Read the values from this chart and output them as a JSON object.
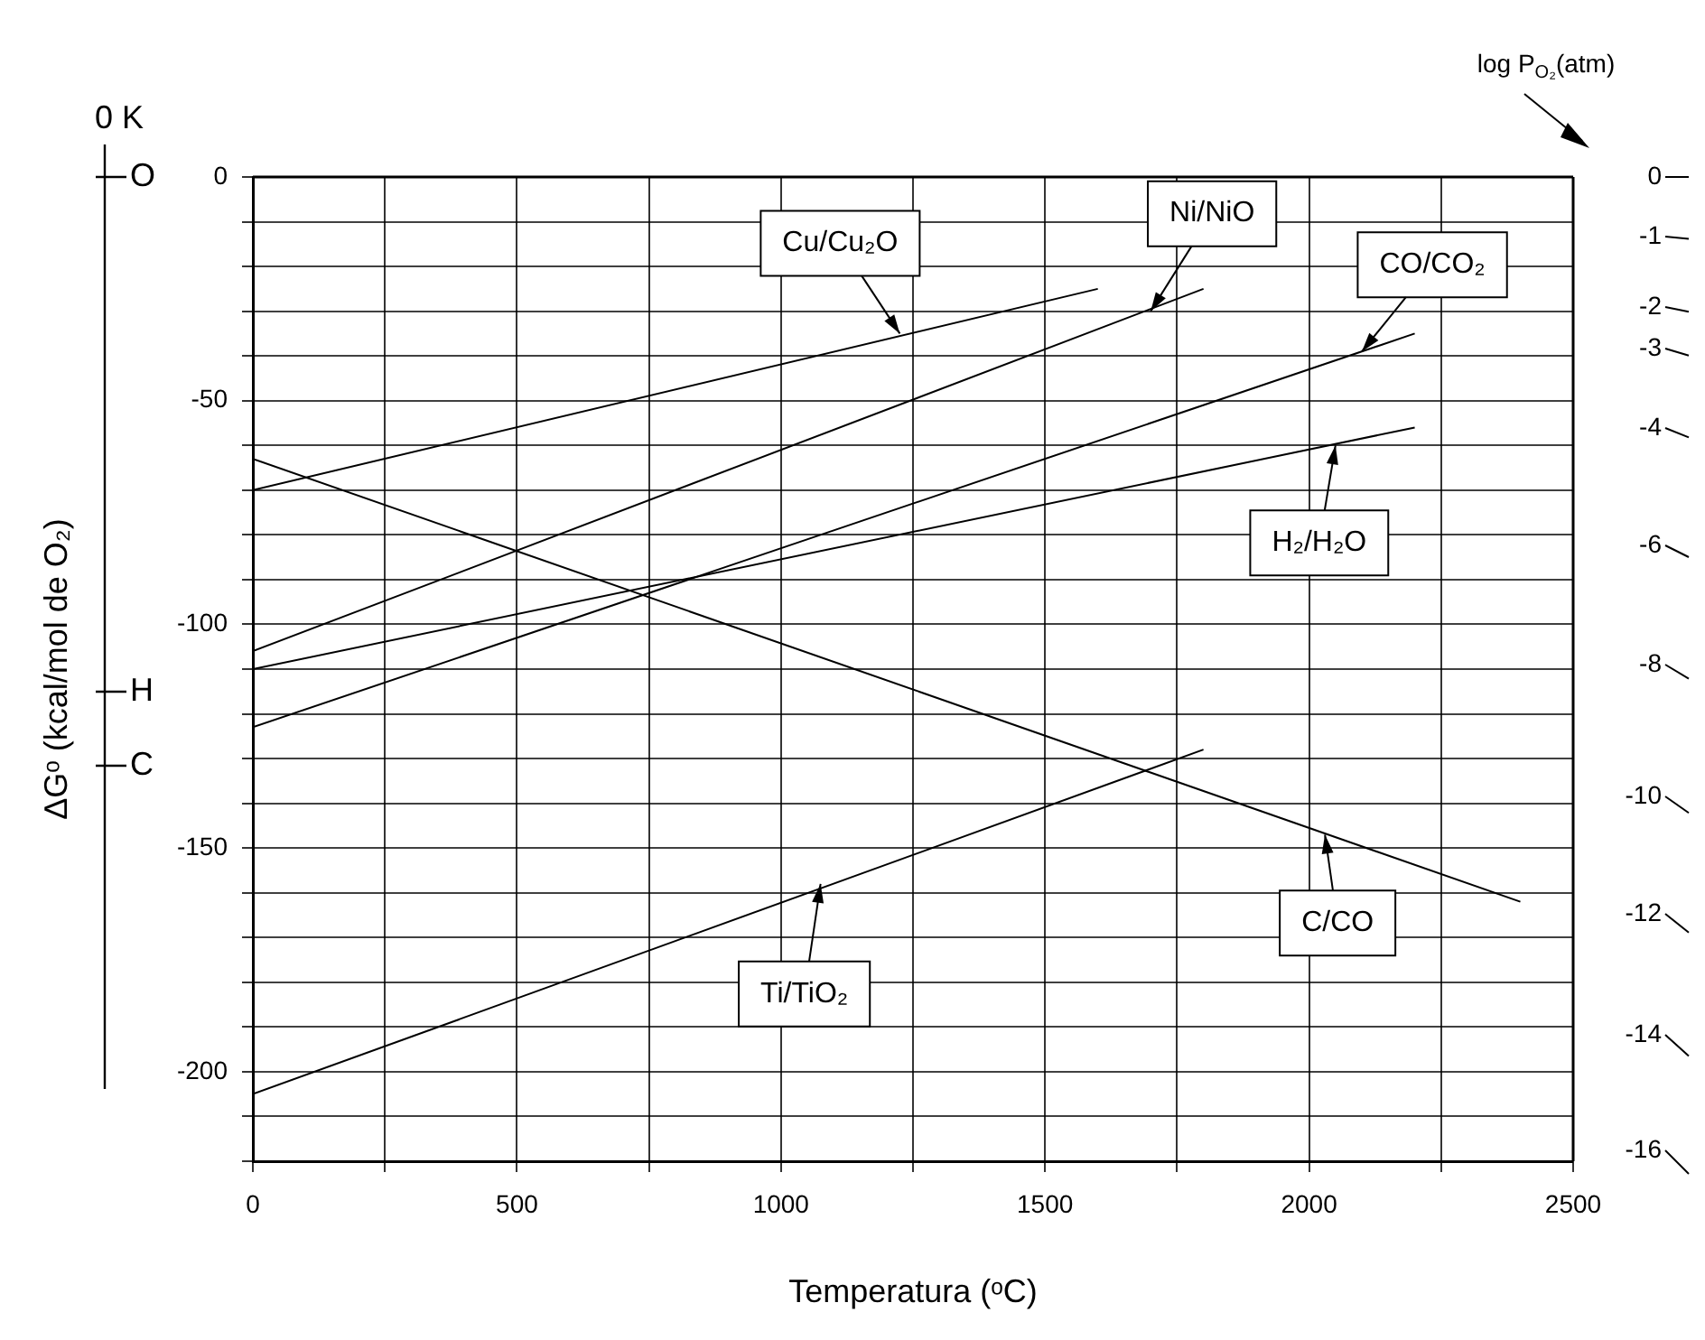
{
  "chart_data": {
    "type": "line",
    "xlabel": "Temperatura (ᵒC)",
    "ylabel": "ΔGᵒ (kcal/mol de O₂)",
    "marker": "none",
    "grid": true,
    "legend": false,
    "xlim": [
      0,
      2500
    ],
    "xticks": [
      0,
      {
        "value": 250,
        "label": null
      },
      500,
      {
        "value": 750,
        "label": null
      },
      1000,
      {
        "value": 1250,
        "label": null
      },
      1500,
      {
        "value": 1750,
        "label": null
      },
      2000,
      {
        "value": 2250,
        "label": null
      },
      2500
    ],
    "ylim": [
      -220,
      0
    ],
    "yticks": [
      0,
      {
        "value": -10,
        "label": null
      },
      {
        "value": -20,
        "label": null
      },
      {
        "value": -30,
        "label": null
      },
      {
        "value": -40,
        "label": null
      },
      -50,
      {
        "value": -60,
        "label": null
      },
      {
        "value": -70,
        "label": null
      },
      {
        "value": -80,
        "label": null
      },
      {
        "value": -90,
        "label": null
      },
      -100,
      {
        "value": -110,
        "label": null
      },
      {
        "value": -120,
        "label": null
      },
      {
        "value": -130,
        "label": null
      },
      {
        "value": -140,
        "label": null
      },
      -150,
      {
        "value": -160,
        "label": null
      },
      {
        "value": -170,
        "label": null
      },
      {
        "value": -180,
        "label": null
      },
      {
        "value": -190,
        "label": null
      },
      -200,
      {
        "value": -210,
        "label": null
      },
      {
        "value": -220,
        "label": null
      }
    ],
    "series": [
      {
        "color": "#000000",
        "x": [
          0,
          1600
        ],
        "values": [
          -70,
          -25
        ]
      },
      {
        "color": "#000000",
        "x": [
          0,
          1800
        ],
        "values": [
          -106,
          -25
        ]
      },
      {
        "color": "#000000",
        "x": [
          0,
          2200
        ],
        "values": [
          -123,
          -35
        ]
      },
      {
        "color": "#000000",
        "x": [
          0,
          2200
        ],
        "values": [
          -110,
          -56
        ]
      },
      {
        "color": "#000000",
        "x": [
          0,
          2400
        ],
        "values": [
          -63,
          -162
        ]
      },
      {
        "color": "#000000",
        "x": [
          0,
          1800
        ],
        "values": [
          -205,
          -128
        ]
      }
    ],
    "annotations": [
      {
        "text": "Cu/Cu₂O",
        "x": 1225,
        "y": -35
      },
      {
        "text": "Ni/NiO",
        "x": 1700,
        "y": -30
      },
      {
        "text": "CO/CO₂",
        "x": 2100,
        "y": -39
      },
      {
        "text": "H₂/H₂O",
        "x": 2050,
        "y": -60
      },
      {
        "text": "C/CO",
        "x": 2030,
        "y": -147
      },
      {
        "text": "Ti/TiO₂",
        "x": 1075,
        "y": -158
      },
      "0 K",
      "O",
      "H",
      "C",
      "log P$_{O₂}$(atm)",
      "0",
      "-1",
      "-2",
      "-3",
      "-4",
      "-6",
      "-8",
      "-10",
      "-12",
      "-14",
      "-16"
    ]
  }
}
